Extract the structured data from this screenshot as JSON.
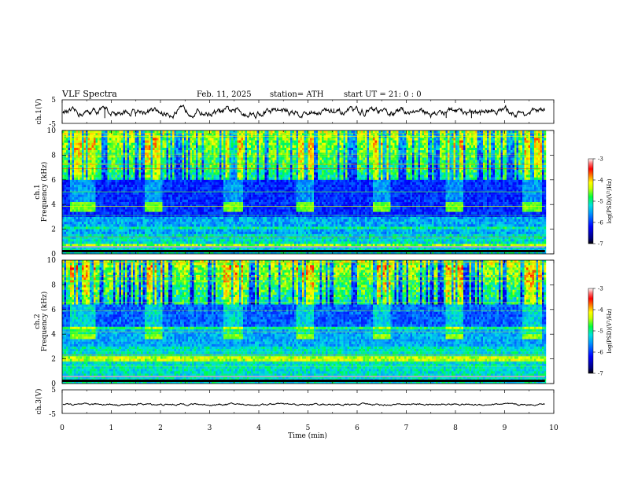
{
  "header": {
    "title": "VLF Spectra",
    "date": "Feb. 11, 2025",
    "station": "station= ATH",
    "start": "start  UT  =   21: 0  : 0"
  },
  "axes": {
    "xlabel": "Time  (min)",
    "xticks": [
      "0",
      "1",
      "2",
      "3",
      "4",
      "5",
      "6",
      "7",
      "8",
      "9",
      "10"
    ],
    "ch1_waveform_label": "ch.1(V)",
    "ch3_waveform_label": "ch.3(V)",
    "waveform_ticks": [
      "5",
      "-5"
    ],
    "ch1_freq_label": "ch.1",
    "ch2_freq_label": "ch.2",
    "freq_unit_label": "Frequency  (kHz)",
    "freq_ticks": [
      "0",
      "2",
      "4",
      "6",
      "8",
      "10"
    ]
  },
  "colorbar": {
    "label": "log(PSD)(V²/Hz)",
    "ticks": [
      "-3",
      "-4",
      "-5",
      "-6",
      "-7"
    ]
  },
  "chart_data": [
    {
      "type": "line",
      "name": "ch1-waveform",
      "ylabel": "ch.1(V)",
      "ylim": [
        -5,
        5
      ],
      "xlim": [
        0,
        10
      ],
      "xlabel": "Time  (min)",
      "description_values": {
        "mean_V": -0.2,
        "amplitude_V": 0.6
      }
    },
    {
      "type": "heatmap",
      "name": "ch1-spectrogram",
      "xlim": [
        0,
        10
      ],
      "ylim": [
        0,
        10
      ],
      "ylabel": "Frequency  (kHz)",
      "colorbar_range": [
        -7,
        -3
      ],
      "tone_bursts_min": [
        [
          0.15,
          0.65
        ],
        [
          1.65,
          2.0
        ],
        [
          3.25,
          3.65
        ],
        [
          4.75,
          5.1
        ],
        [
          6.3,
          6.65
        ],
        [
          7.8,
          8.15
        ],
        [
          9.35,
          9.75
        ]
      ],
      "tone_band_khz": [
        3.6,
        4.3
      ]
    },
    {
      "type": "heatmap",
      "name": "ch2-spectrogram",
      "xlim": [
        0,
        10
      ],
      "ylim": [
        0,
        10
      ],
      "ylabel": "Frequency  (kHz)",
      "colorbar_range": [
        -7,
        -3
      ],
      "tone_bursts_min": [
        [
          0.15,
          0.65
        ],
        [
          1.65,
          2.0
        ],
        [
          3.25,
          3.65
        ],
        [
          4.75,
          5.1
        ],
        [
          6.3,
          6.65
        ],
        [
          7.8,
          8.15
        ],
        [
          9.35,
          9.75
        ]
      ],
      "tone_band_khz": [
        3.6,
        4.1
      ]
    },
    {
      "type": "line",
      "name": "ch3-waveform",
      "ylabel": "ch.3(V)",
      "ylim": [
        -5,
        5
      ],
      "xlim": [
        0,
        10
      ],
      "description_values": {
        "mean_V": -1.2,
        "amplitude_V": 0.15
      }
    }
  ]
}
